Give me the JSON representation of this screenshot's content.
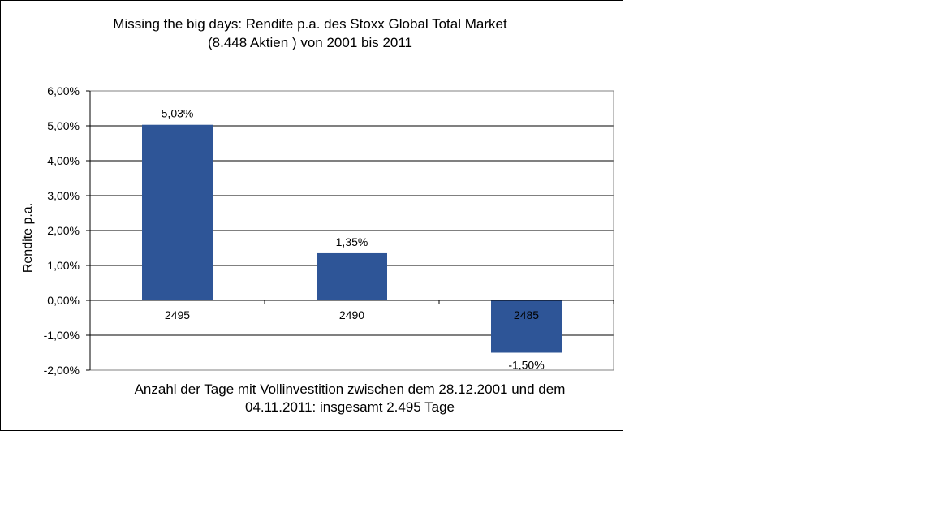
{
  "chart_data": {
    "type": "bar",
    "title_lines": [
      "Missing the big days: Rendite p.a. des Stoxx Global Total Market",
      "(8.448 Aktien ) von 2001 bis 2011"
    ],
    "categories": [
      "2495",
      "2490",
      "2485"
    ],
    "values": [
      5.03,
      1.35,
      -1.5
    ],
    "data_labels": [
      "5,03%",
      "1,35%",
      "-1,50%"
    ],
    "ylabel": "Rendite p.a.",
    "xlabel_lines": [
      "Anzahl der Tage mit Vollinvestition zwischen dem 28.12.2001 und dem",
      "04.11.2011: insgesamt 2.495 Tage"
    ],
    "ylim": [
      -2,
      6
    ],
    "yticks": [
      6,
      5,
      4,
      3,
      2,
      1,
      0,
      -1,
      -2
    ],
    "ytick_labels": [
      "6,00%",
      "5,00%",
      "4,00%",
      "3,00%",
      "2,00%",
      "1,00%",
      "0,00%",
      "-1,00%",
      "-2,00%"
    ],
    "grid": true,
    "legend": "none",
    "bar_color": "#2E5597"
  }
}
